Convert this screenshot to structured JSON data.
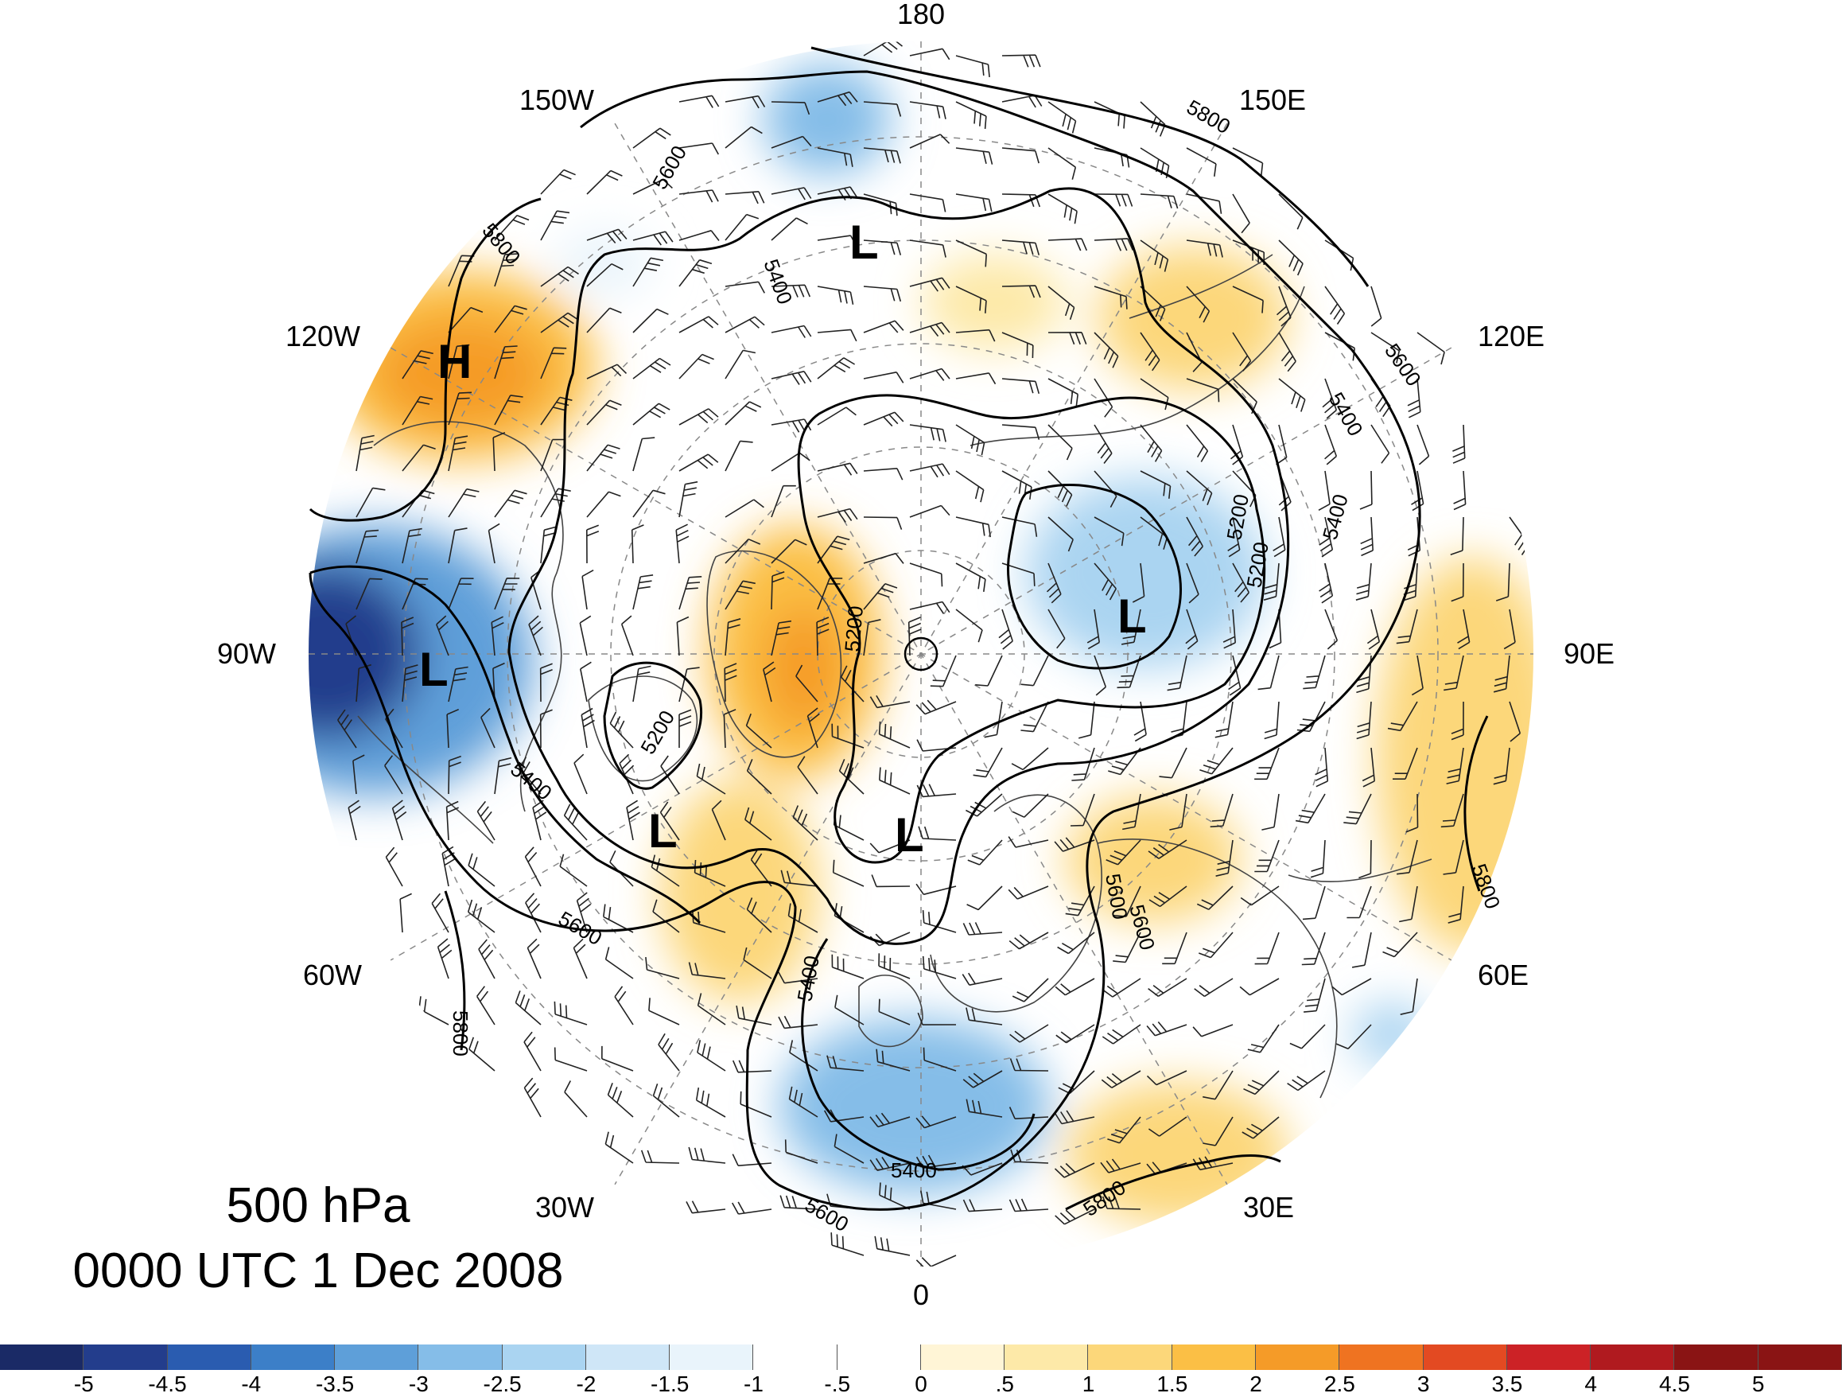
{
  "title": {
    "level": "500 hPa",
    "time": "0000 UTC 1 Dec 2008"
  },
  "longitude_labels": [
    "180",
    "150E",
    "120E",
    "90E",
    "60E",
    "30E",
    "0",
    "30W",
    "60W",
    "90W",
    "120W",
    "150W"
  ],
  "contour_labels": [
    "5800",
    "5600",
    "5400",
    "5200",
    "5400",
    "5600",
    "5800",
    "5800",
    "5600",
    "5400",
    "5200",
    "5400",
    "5600",
    "5800",
    "5200",
    "5400",
    "5600",
    "5800",
    "5400",
    "5600",
    "5200"
  ],
  "pressure_centers": [
    "L",
    "H",
    "L",
    "L",
    "L",
    "L"
  ],
  "colorbar": {
    "ticks": [
      "-5",
      "-4.5",
      "-4",
      "-3.5",
      "-3",
      "-2.5",
      "-2",
      "-1.5",
      "-1",
      "-.5",
      "0",
      ".5",
      "1",
      "1.5",
      "2",
      "2.5",
      "3",
      "3.5",
      "4",
      "4.5",
      "5"
    ],
    "colors": [
      "#1a2a66",
      "#233d8c",
      "#2a5cb0",
      "#3c7fc8",
      "#5e9fd9",
      "#85bde8",
      "#aad4f1",
      "#cfe6f7",
      "#e9f4fb",
      "#ffffff",
      "#ffffff",
      "#fff5d6",
      "#fde9a8",
      "#fcd77a",
      "#fbbf45",
      "#f59b28",
      "#ef7321",
      "#e34a22",
      "#cc2226",
      "#b01a1f",
      "#8a1414"
    ]
  }
}
